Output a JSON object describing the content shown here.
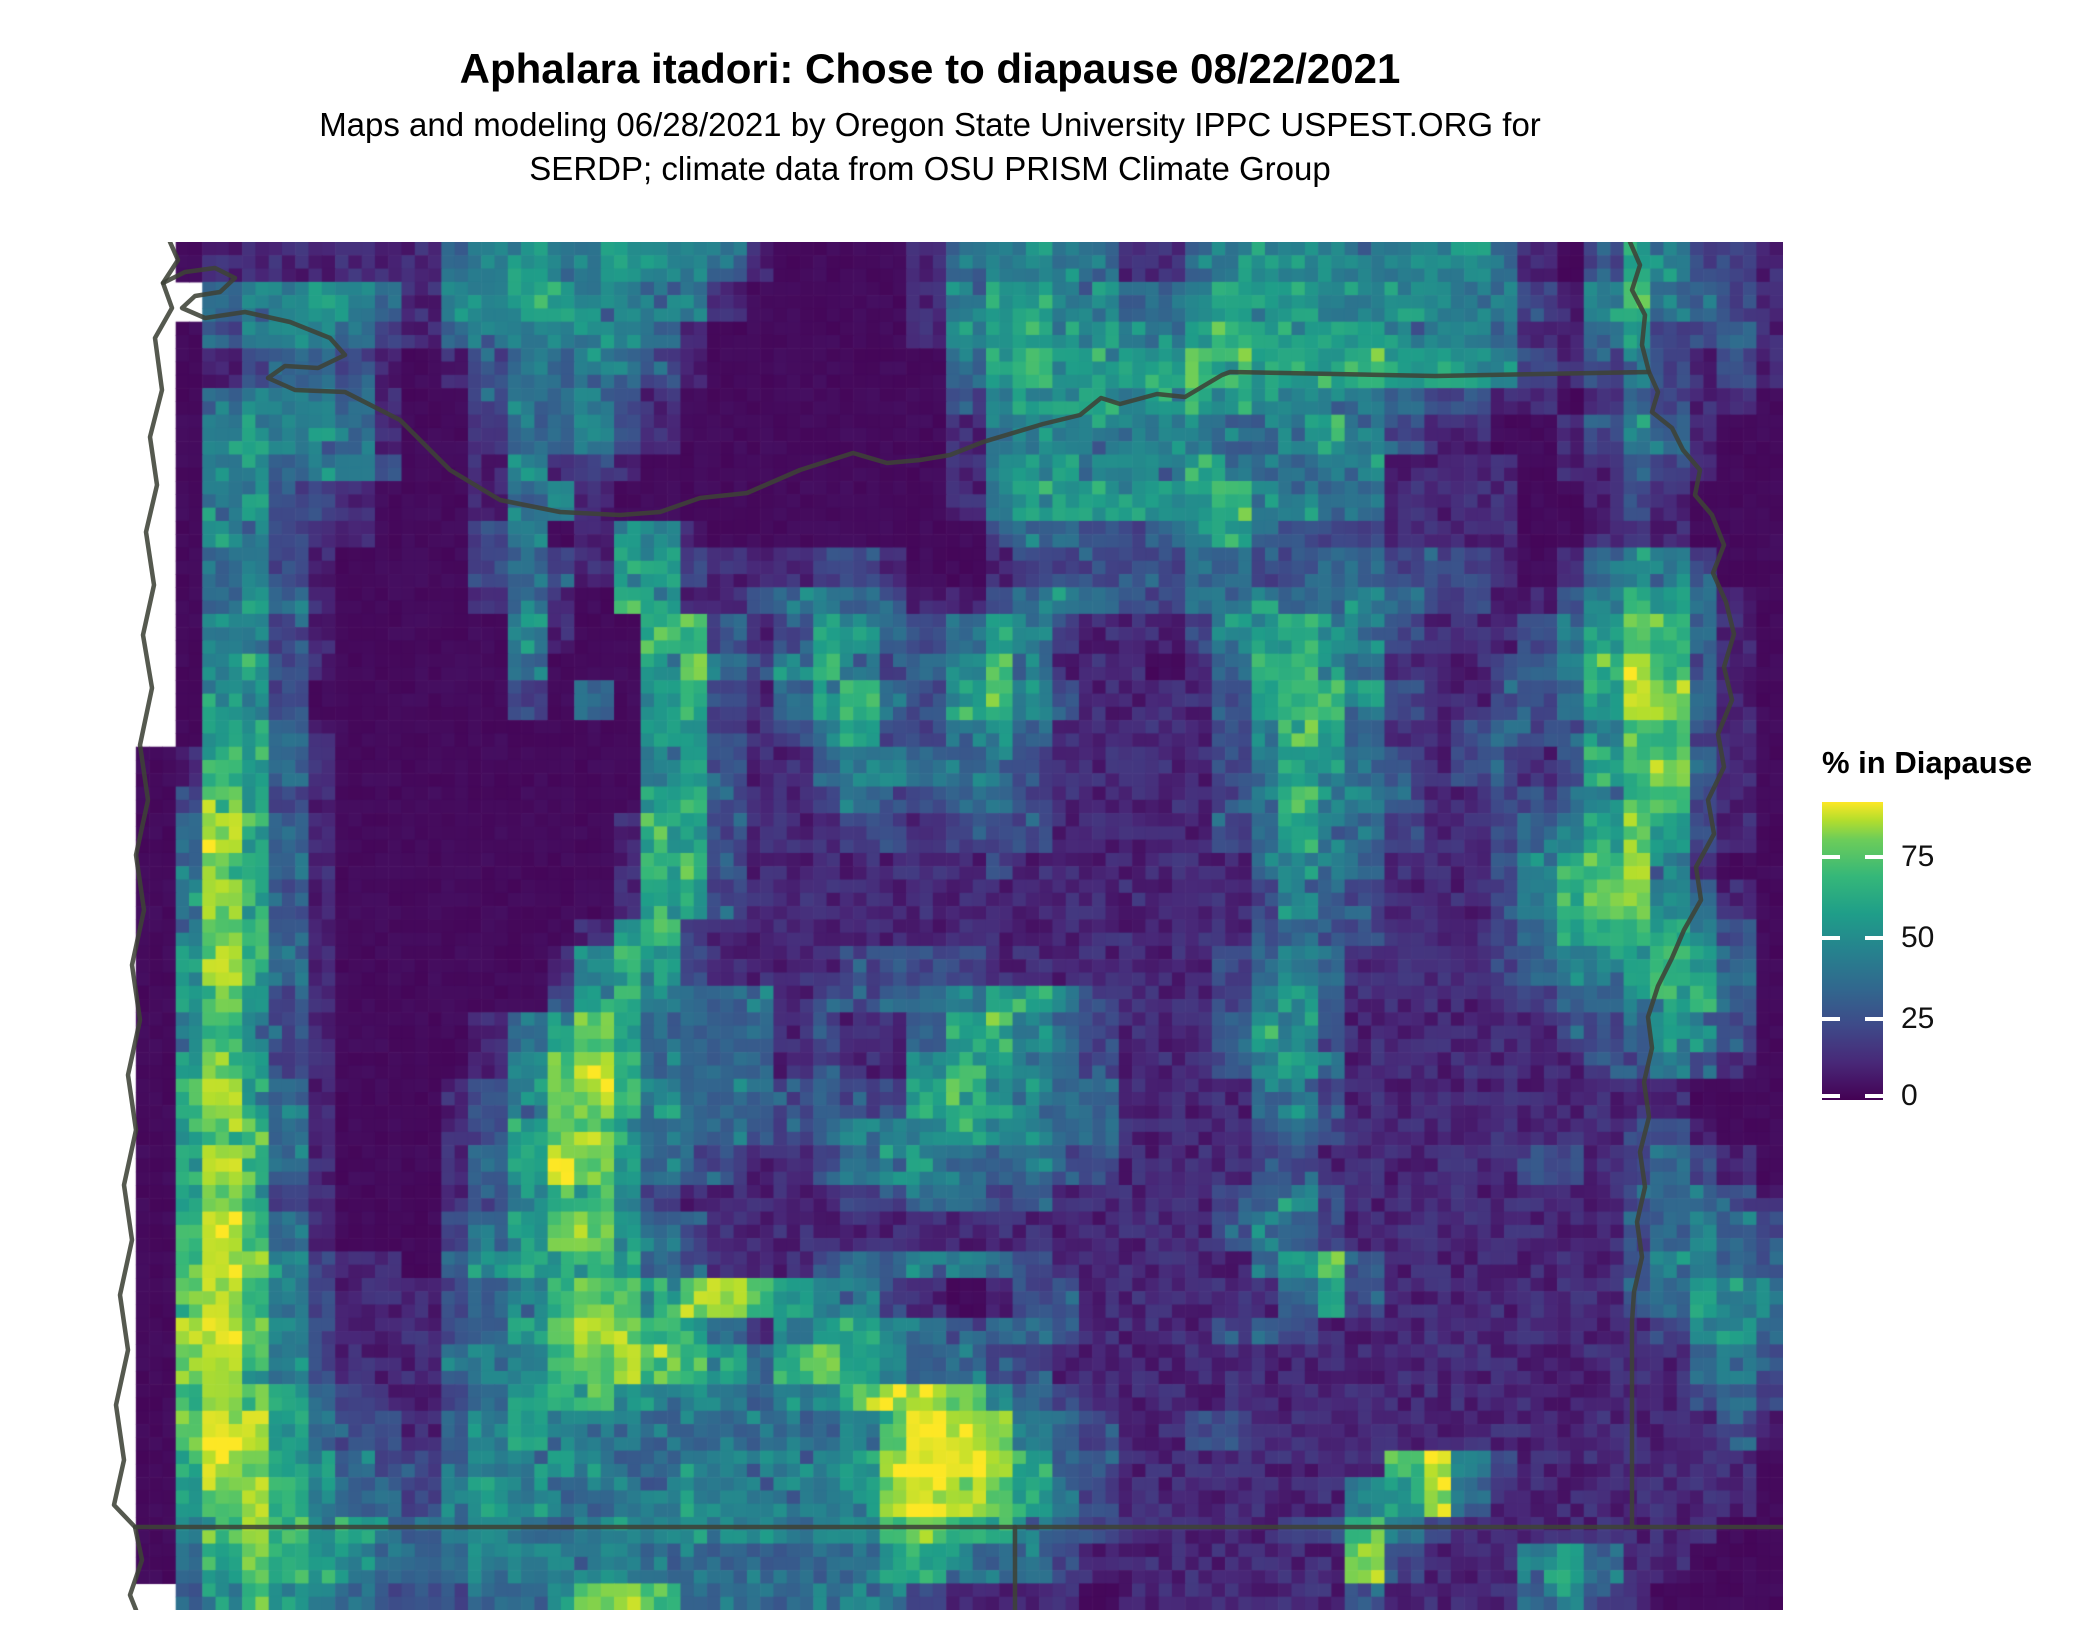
{
  "header": {
    "title": "Aphalara itadori: Chose to diapause 08/22/2021",
    "subtitle_line1": "Maps and modeling 06/28/2021 by Oregon State University IPPC USPEST.ORG for",
    "subtitle_line2": "SERDP; climate data from OSU PRISM Climate Group"
  },
  "legend": {
    "title": "% in Diapause",
    "scale_min": 0,
    "scale_max": 92,
    "ticks": [
      {
        "label": "75",
        "value": 75
      },
      {
        "label": "50",
        "value": 50
      },
      {
        "label": "25",
        "value": 25
      },
      {
        "label": "0",
        "value": 0
      }
    ]
  },
  "colors": {
    "background": "#ffffff",
    "text": "#000000",
    "border_line": "#3e4237",
    "tick_dash": "#ffffff",
    "colormap": "viridis",
    "colormap_min": "#440154",
    "colormap_max": "#fde725"
  },
  "chart_data": {
    "type": "heatmap",
    "title": "Aphalara itadori: Chose to diapause 08/22/2021",
    "legend_title": "% in Diapause",
    "unit": "percent of population in diapause",
    "scale_min": 0,
    "scale_max": 92,
    "region": "Oregon, USA and bordering areas (PRISM climate raster)",
    "ocean_char": ".",
    "cell_values_note": "each char = approx % in diapause divided by 10 (0 = 0-5%, 9 = ~90%); '.' = ocean / no data",
    "grid": [
      "..011111113454454431000013444311344444444310254221",
      "...34454314455444310000014554433455544544421463321",
      "..024443213444543100000014555444565555444311352231",
      "..012332101233432100000003565555665556555421242121",
      "..034443100233321000000002455545554444322110132110",
      "..045443100133421000000001344444433454211001243100",
      "..044344200141210000000001455444543344111101132100",
      "..045221000134100000000001455555564433111100121000",
      "..044211000240154100000000233223453222111100111000",
      "..034210000232155211122100122222332233222101344200",
      "..035310000131065112343211234322344334322112465310",
      "..044210000041006621255323542111245654211123576310",
      "..045210000030005732464234631110136653111234686210",
      "..054200000020305621356325642111125664211223587310",
      "..055310000000005521245224531111124653112322476210",
      ".016531000000000452113443342111112455321 2212567310",
      ".027521000000000562112322332111112465421 1223466210",
      ".038631000000001652111221222111112354321 1234575210",
      ".037631000000001662111111121111111344311 1245684100",
      ".048521000000001552111111111111111243211 1246774310",
      ".047631000000014621111111111111111232211 1235665420",
      ".058631000000146521111222211111112343111 1234456530",
      ".057521000000256433312233455421112453111 1123345630",
      ".046421000013575333312113564321113542111 1112235420",
      ".057521000014686333312114654321112453111 1111224210",
      ".068531000124786433323225644331111342111 1111111000",
      ".057631000125775333223444544331111232111 1111122100",
      ".068631000135875322112344333221111221111 1122123210",
      ".057521000124664211111223322111112342111 1111123321",
      ".068631000235775321111111111111112432111 1111123432",
      ".068742110355665321112334432111111357211 1111124432",
      ".078642111234676578654421012211111135211 1111123543",
      ".089742111235787653145543233211112321111 1111112453",
      ".078642111344678765367543322111111111111 1111111342",
      ".068753211235665444344798743211111111111 1111111232",
      ".079853221345444333333479874321122111111 1111111121",
      ".068754322344443344444589985321111111168 4211111110",
      ".057864332454334444444589875421111111458 3111111110",
      ".046874543443344444434467654321111122642 1111111100",
      ".035765433344444333333355433211111111721 1145311000",
      "..246543222334786333334321111011111112111134210000"
    ]
  },
  "map": {
    "borders": [
      {
        "name": "coastline",
        "points": [
          [
            74,
            0
          ],
          [
            82,
            18
          ],
          [
            67,
            41
          ],
          [
            76,
            66
          ],
          [
            59,
            96
          ],
          [
            66,
            148
          ],
          [
            54,
            195
          ],
          [
            61,
            243
          ],
          [
            50,
            290
          ],
          [
            58,
            343
          ],
          [
            47,
            393
          ],
          [
            56,
            446
          ],
          [
            44,
            503
          ],
          [
            52,
            558
          ],
          [
            40,
            613
          ],
          [
            48,
            668
          ],
          [
            36,
            723
          ],
          [
            44,
            778
          ],
          [
            32,
            833
          ],
          [
            40,
            888
          ],
          [
            28,
            943
          ],
          [
            36,
            998
          ],
          [
            24,
            1053
          ],
          [
            32,
            1108
          ],
          [
            20,
            1163
          ],
          [
            28,
            1218
          ],
          [
            18,
            1263
          ],
          [
            39,
            1285
          ],
          [
            46,
            1318
          ],
          [
            34,
            1353
          ],
          [
            40,
            1368
          ]
        ]
      },
      {
        "name": "columbia-river-and-north-border",
        "points": [
          [
            67,
            41
          ],
          [
            89,
            30
          ],
          [
            119,
            26
          ],
          [
            139,
            36
          ],
          [
            124,
            50
          ],
          [
            99,
            54
          ],
          [
            86,
            66
          ],
          [
            109,
            76
          ],
          [
            149,
            70
          ],
          [
            194,
            80
          ],
          [
            234,
            96
          ],
          [
            249,
            113
          ],
          [
            222,
            126
          ],
          [
            189,
            124
          ],
          [
            172,
            136
          ],
          [
            199,
            148
          ],
          [
            249,
            150
          ],
          [
            304,
            178
          ],
          [
            354,
            228
          ],
          [
            404,
            258
          ],
          [
            464,
            270
          ],
          [
            524,
            273
          ],
          [
            564,
            270
          ],
          [
            604,
            256
          ],
          [
            651,
            251
          ],
          [
            704,
            228
          ],
          [
            757,
            211
          ],
          [
            791,
            221
          ],
          [
            824,
            218
          ],
          [
            854,
            213
          ],
          [
            887,
            200
          ],
          [
            947,
            182
          ],
          [
            984,
            173
          ],
          [
            1005,
            156
          ],
          [
            1024,
            162
          ],
          [
            1061,
            152
          ],
          [
            1089,
            155
          ],
          [
            1126,
            133
          ],
          [
            1134,
            130
          ],
          [
            1339,
            134
          ],
          [
            1553,
            130
          ]
        ]
      },
      {
        "name": "snake-river-and-east-border",
        "points": [
          [
            1534,
            0
          ],
          [
            1544,
            23
          ],
          [
            1536,
            48
          ],
          [
            1549,
            73
          ],
          [
            1546,
            103
          ],
          [
            1553,
            130
          ],
          [
            1562,
            150
          ],
          [
            1556,
            170
          ],
          [
            1576,
            186
          ],
          [
            1587,
            208
          ],
          [
            1604,
            228
          ],
          [
            1599,
            253
          ],
          [
            1616,
            273
          ],
          [
            1628,
            303
          ],
          [
            1617,
            331
          ],
          [
            1630,
            360
          ],
          [
            1638,
            392
          ],
          [
            1628,
            425
          ],
          [
            1636,
            458
          ],
          [
            1622,
            492
          ],
          [
            1628,
            525
          ],
          [
            1612,
            558
          ],
          [
            1618,
            592
          ],
          [
            1600,
            625
          ],
          [
            1605,
            658
          ],
          [
            1588,
            688
          ],
          [
            1576,
            716
          ],
          [
            1562,
            744
          ],
          [
            1552,
            775
          ],
          [
            1556,
            806
          ],
          [
            1548,
            840
          ],
          [
            1553,
            875
          ],
          [
            1544,
            910
          ],
          [
            1549,
            945
          ],
          [
            1541,
            980
          ],
          [
            1546,
            1015
          ],
          [
            1538,
            1050
          ],
          [
            1536,
            1080
          ],
          [
            1536,
            1285
          ]
        ]
      },
      {
        "name": "southern-border-42n",
        "points": [
          [
            39,
            1285
          ],
          [
            1687,
            1285
          ]
        ]
      },
      {
        "name": "california-nevada-border",
        "points": [
          [
            919,
            1285
          ],
          [
            919,
            1368
          ]
        ]
      }
    ]
  }
}
